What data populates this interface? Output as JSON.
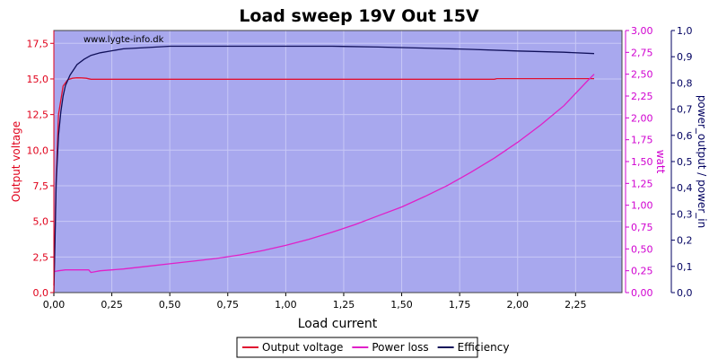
{
  "chart_data": {
    "type": "line",
    "title": "Load sweep 19V Out 15V",
    "watermark": "www.lygte-info.dk",
    "xlabel": "Load current",
    "xlim": [
      0,
      2.45
    ],
    "xticks": [
      "0,00",
      "0,25",
      "0,50",
      "0,75",
      "1,00",
      "1,25",
      "1,50",
      "1,75",
      "2,00",
      "2,25"
    ],
    "y_left": {
      "label": "Output voltage",
      "color": "#e0001a",
      "lim": [
        0,
        18.4
      ],
      "ticks": [
        "0,0",
        "2,5",
        "5,0",
        "7,5",
        "10,0",
        "12,5",
        "15,0",
        "17,5"
      ]
    },
    "y_right1": {
      "label": "watt",
      "color": "#d000d0",
      "lim": [
        0,
        3.0
      ],
      "ticks": [
        "0,00",
        "0,25",
        "0,50",
        "0,75",
        "1,00",
        "1,25",
        "1,50",
        "1,75",
        "2,00",
        "2,25",
        "2,50",
        "2,75",
        "3,00"
      ]
    },
    "y_right2": {
      "label": "power_output / power_in",
      "color": "#000060",
      "lim": [
        0,
        1.0
      ],
      "ticks": [
        "0,0",
        "0,1",
        "0,2",
        "0,3",
        "0,4",
        "0,5",
        "0,6",
        "0,7",
        "0,8",
        "0,9",
        "1,0"
      ]
    },
    "grid": true,
    "legend_placement": "bottom-center",
    "plot_background": "#a8a8ee",
    "series": [
      {
        "name": "Output voltage",
        "axis": "y_left",
        "color": "#e01030",
        "x": [
          0.0,
          0.01,
          0.02,
          0.04,
          0.06,
          0.08,
          0.1,
          0.12,
          0.14,
          0.16,
          0.2,
          0.5,
          1.0,
          1.5,
          1.9,
          1.91,
          2.0,
          2.33
        ],
        "y": [
          0.5,
          8.0,
          12.5,
          14.5,
          14.95,
          15.05,
          15.08,
          15.07,
          15.05,
          14.98,
          14.98,
          14.98,
          14.98,
          14.98,
          14.98,
          15.02,
          15.02,
          15.02
        ]
      },
      {
        "name": "Power loss",
        "axis": "y_right1",
        "color": "#e020c8",
        "x": [
          0.0,
          0.02,
          0.05,
          0.1,
          0.15,
          0.16,
          0.2,
          0.3,
          0.4,
          0.5,
          0.6,
          0.7,
          0.8,
          0.9,
          1.0,
          1.1,
          1.2,
          1.3,
          1.4,
          1.5,
          1.6,
          1.7,
          1.8,
          1.9,
          2.0,
          2.1,
          2.2,
          2.3,
          2.33
        ],
        "y": [
          0.24,
          0.25,
          0.26,
          0.26,
          0.26,
          0.23,
          0.25,
          0.27,
          0.3,
          0.33,
          0.36,
          0.39,
          0.43,
          0.48,
          0.54,
          0.61,
          0.69,
          0.78,
          0.88,
          0.98,
          1.1,
          1.23,
          1.38,
          1.54,
          1.72,
          1.92,
          2.14,
          2.42,
          2.5
        ]
      },
      {
        "name": "Efficiency",
        "axis": "y_right2",
        "color": "#10105a",
        "x": [
          0.0,
          0.005,
          0.01,
          0.02,
          0.03,
          0.04,
          0.05,
          0.07,
          0.1,
          0.13,
          0.16,
          0.2,
          0.3,
          0.4,
          0.5,
          0.6,
          0.8,
          1.0,
          1.2,
          1.4,
          1.6,
          1.8,
          2.0,
          2.2,
          2.33
        ],
        "y": [
          0.0,
          0.2,
          0.42,
          0.6,
          0.69,
          0.75,
          0.79,
          0.83,
          0.87,
          0.89,
          0.905,
          0.915,
          0.93,
          0.935,
          0.94,
          0.94,
          0.94,
          0.94,
          0.94,
          0.937,
          0.933,
          0.928,
          0.922,
          0.917,
          0.912
        ]
      }
    ]
  }
}
